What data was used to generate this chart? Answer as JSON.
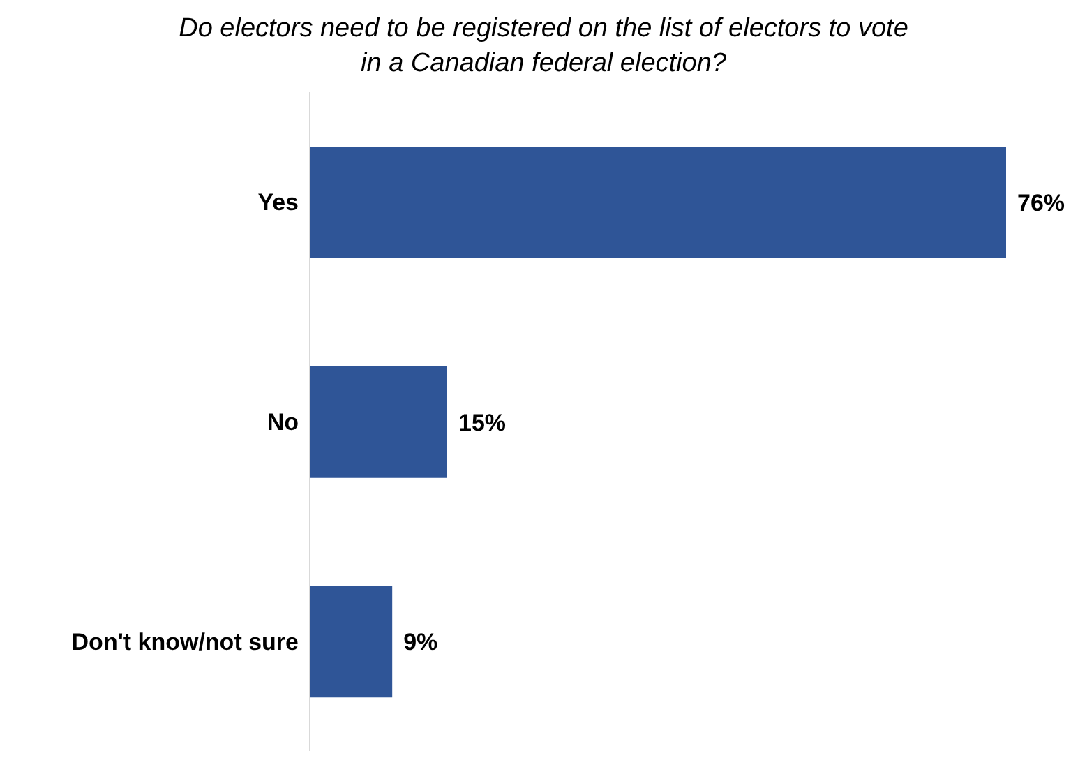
{
  "chart_data": {
    "type": "bar",
    "orientation": "horizontal",
    "title": "Do electors need to be registered on the list of electors to vote in a Canadian federal election?",
    "categories": [
      "Yes",
      "No",
      "Don't know/not sure"
    ],
    "values": [
      76,
      15,
      9
    ],
    "color": "#2f5597",
    "value_labels": [
      "76%",
      "15%",
      "9%"
    ]
  }
}
